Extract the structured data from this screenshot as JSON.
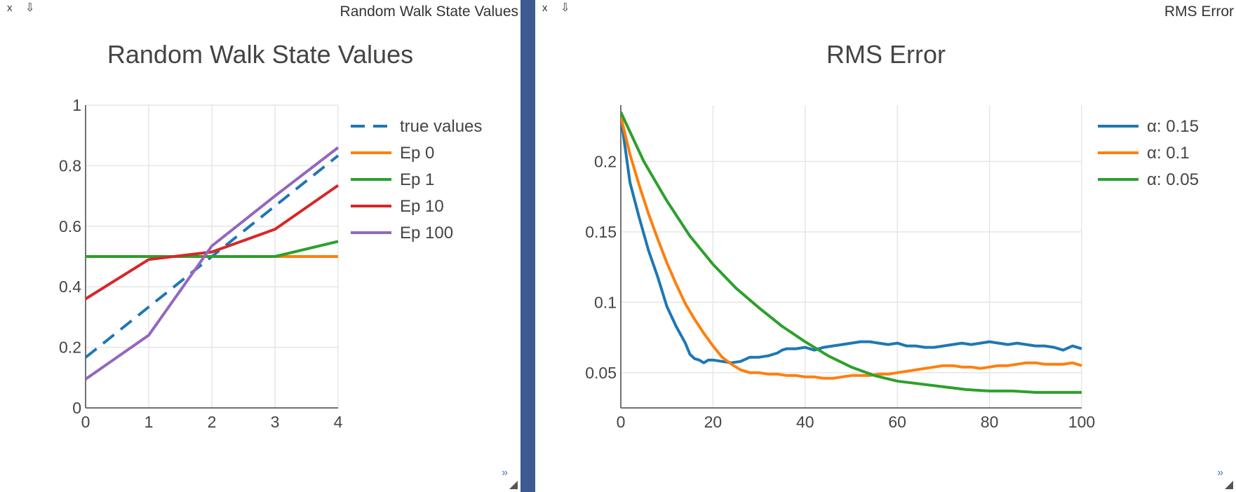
{
  "panes": [
    {
      "toolbar": {
        "close_label": "x",
        "dock_label": "⇩",
        "title": "Random Walk State Values",
        "more_label": "»"
      }
    },
    {
      "toolbar": {
        "close_label": "x",
        "dock_label": "⇩",
        "title": "RMS Error",
        "more_label": "»"
      }
    }
  ],
  "colors": {
    "divider": "#3d5a92",
    "blue": "#1f77b4",
    "orange": "#ff7f0e",
    "green": "#2ca02c",
    "red": "#d62728",
    "purple": "#9467bd"
  },
  "chart_data": [
    {
      "type": "line",
      "title": "Random Walk State Values",
      "xlim": [
        0,
        4
      ],
      "ylim": [
        0,
        1
      ],
      "x_ticks": [
        "0",
        "1",
        "2",
        "3",
        "4"
      ],
      "y_ticks": [
        "0",
        "0.2",
        "0.4",
        "0.6",
        "0.8",
        "1"
      ],
      "x_tick_values": [
        0,
        1,
        2,
        3,
        4
      ],
      "y_tick_values": [
        0,
        0.2,
        0.4,
        0.6,
        0.8,
        1
      ],
      "grid": true,
      "legend_position": "right",
      "series": [
        {
          "name": "true values",
          "x": [
            0,
            1,
            2,
            3,
            4
          ],
          "y": [
            0.1667,
            0.3333,
            0.5,
            0.6667,
            0.8333
          ],
          "color": "#1f77b4",
          "dash": true
        },
        {
          "name": "Ep 0",
          "x": [
            0,
            1,
            2,
            3,
            4
          ],
          "y": [
            0.5,
            0.5,
            0.5,
            0.5,
            0.5
          ],
          "color": "#ff7f0e",
          "dash": false
        },
        {
          "name": "Ep 1",
          "x": [
            0,
            1,
            2,
            3,
            4
          ],
          "y": [
            0.5,
            0.5,
            0.5,
            0.5,
            0.55
          ],
          "color": "#2ca02c",
          "dash": false
        },
        {
          "name": "Ep 10",
          "x": [
            0,
            1,
            2,
            3,
            4
          ],
          "y": [
            0.36,
            0.49,
            0.515,
            0.59,
            0.735
          ],
          "color": "#d62728",
          "dash": false
        },
        {
          "name": "Ep 100",
          "x": [
            0,
            1,
            2,
            3,
            4
          ],
          "y": [
            0.095,
            0.24,
            0.535,
            0.7,
            0.86
          ],
          "color": "#9467bd",
          "dash": false
        }
      ]
    },
    {
      "type": "line",
      "title": "RMS Error",
      "xlim": [
        0,
        100
      ],
      "ylim": [
        0.025,
        0.24
      ],
      "x_ticks": [
        "0",
        "20",
        "40",
        "60",
        "80",
        "100"
      ],
      "y_ticks": [
        "0.05",
        "0.1",
        "0.15",
        "0.2"
      ],
      "x_tick_values": [
        0,
        20,
        40,
        60,
        80,
        100
      ],
      "y_tick_values": [
        0.05,
        0.1,
        0.15,
        0.2
      ],
      "grid": true,
      "legend_position": "top-right",
      "series": [
        {
          "name": "α: 0.15",
          "color": "#1f77b4",
          "x": [
            0,
            2,
            4,
            6,
            8,
            10,
            12,
            14,
            15,
            16,
            17,
            18,
            19,
            20,
            22,
            24,
            26,
            28,
            30,
            32,
            34,
            35,
            36,
            38,
            40,
            42,
            44,
            46,
            48,
            50,
            52,
            54,
            56,
            58,
            60,
            62,
            64,
            66,
            68,
            70,
            72,
            74,
            76,
            78,
            80,
            82,
            84,
            86,
            88,
            90,
            92,
            94,
            96,
            98,
            100
          ],
          "y": [
            0.232,
            0.185,
            0.16,
            0.137,
            0.118,
            0.097,
            0.083,
            0.071,
            0.063,
            0.06,
            0.059,
            0.057,
            0.059,
            0.059,
            0.058,
            0.057,
            0.058,
            0.061,
            0.061,
            0.062,
            0.064,
            0.066,
            0.067,
            0.067,
            0.068,
            0.066,
            0.068,
            0.069,
            0.07,
            0.071,
            0.072,
            0.072,
            0.071,
            0.07,
            0.071,
            0.069,
            0.069,
            0.068,
            0.068,
            0.069,
            0.07,
            0.071,
            0.07,
            0.071,
            0.072,
            0.071,
            0.07,
            0.071,
            0.07,
            0.069,
            0.069,
            0.068,
            0.066,
            0.069,
            0.067
          ]
        },
        {
          "name": "α: 0.1",
          "color": "#ff7f0e",
          "x": [
            0,
            2,
            4,
            6,
            8,
            10,
            12,
            14,
            16,
            18,
            20,
            22,
            24,
            26,
            28,
            30,
            32,
            34,
            36,
            38,
            40,
            42,
            44,
            46,
            48,
            50,
            52,
            54,
            56,
            58,
            60,
            62,
            64,
            66,
            68,
            70,
            72,
            74,
            76,
            78,
            80,
            82,
            84,
            86,
            88,
            90,
            92,
            94,
            96,
            98,
            100
          ],
          "y": [
            0.232,
            0.205,
            0.183,
            0.163,
            0.145,
            0.128,
            0.113,
            0.099,
            0.088,
            0.078,
            0.069,
            0.061,
            0.056,
            0.052,
            0.05,
            0.05,
            0.049,
            0.049,
            0.048,
            0.048,
            0.047,
            0.047,
            0.046,
            0.046,
            0.047,
            0.048,
            0.048,
            0.048,
            0.049,
            0.049,
            0.05,
            0.051,
            0.052,
            0.053,
            0.054,
            0.055,
            0.055,
            0.054,
            0.054,
            0.053,
            0.054,
            0.055,
            0.055,
            0.056,
            0.057,
            0.057,
            0.056,
            0.056,
            0.056,
            0.057,
            0.055
          ]
        },
        {
          "name": "α: 0.05",
          "color": "#2ca02c",
          "x": [
            0,
            5,
            10,
            15,
            20,
            25,
            30,
            35,
            40,
            45,
            50,
            55,
            60,
            65,
            70,
            75,
            80,
            85,
            90,
            95,
            100
          ],
          "y": [
            0.235,
            0.2,
            0.172,
            0.147,
            0.127,
            0.11,
            0.096,
            0.083,
            0.072,
            0.062,
            0.054,
            0.048,
            0.044,
            0.042,
            0.04,
            0.038,
            0.037,
            0.037,
            0.036,
            0.036,
            0.036
          ]
        }
      ]
    }
  ]
}
